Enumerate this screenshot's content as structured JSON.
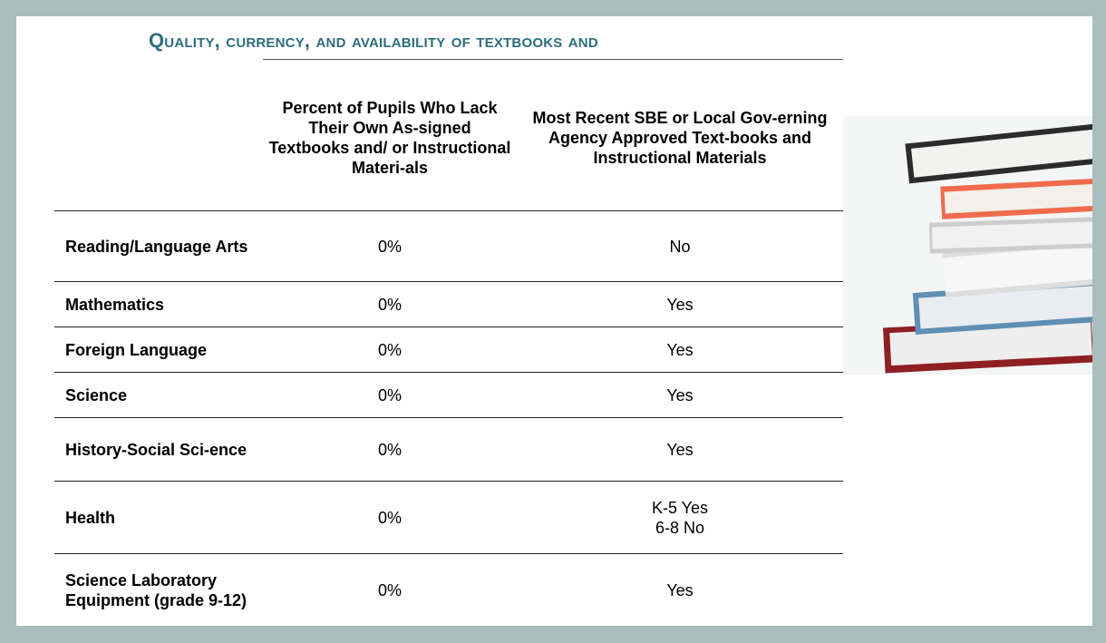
{
  "header": {
    "title": "Quality, currency, and availability of textbooks and"
  },
  "table": {
    "columns": [
      "Percent of Pupils Who Lack Their Own As-signed Textbooks and/ or Instructional Materi-als",
      "Most Recent SBE or Local Gov-erning Agency Approved Text-books and Instructional Materials"
    ],
    "rows": [
      [
        "Reading/Language Arts",
        "0%",
        "No"
      ],
      [
        "Mathematics",
        "0%",
        "Yes"
      ],
      [
        "Foreign Language",
        "0%",
        "Yes"
      ],
      [
        "Science",
        "0%",
        "Yes"
      ],
      [
        "History-Social Sci-ence",
        "0%",
        "Yes"
      ],
      [
        "Health",
        "0%",
        "K-5 Yes\n6-8  No"
      ],
      [
        "Science Laboratory Equipment (grade 9-12)",
        "0%",
        "Yes"
      ]
    ]
  }
}
